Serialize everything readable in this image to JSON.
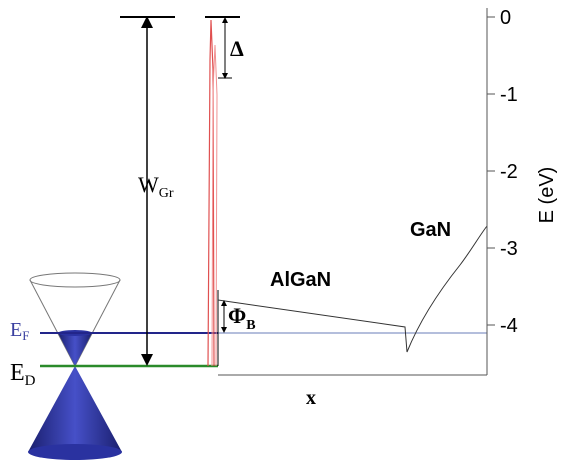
{
  "energy_axis": {
    "label": "E (eV)",
    "ylim": [
      -4.65,
      0
    ],
    "yticks": [
      0,
      -1,
      -2,
      -3,
      -4
    ]
  },
  "labels": {
    "delta": "Δ",
    "work_function": "W",
    "work_function_sub": "Gr",
    "barrier": "Φ",
    "barrier_sub": "B",
    "fermi": "E",
    "fermi_sub": "F",
    "dirac": "E",
    "dirac_sub": "D",
    "algan": "AlGaN",
    "gan": "GaN",
    "x_axis": "x"
  }
}
